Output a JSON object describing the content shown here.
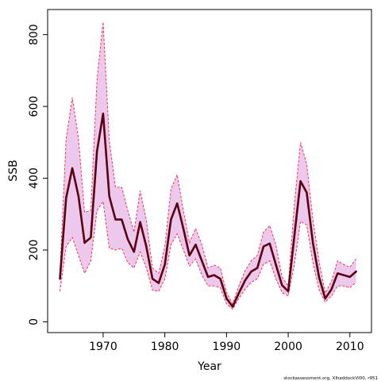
{
  "chart_data": {
    "type": "line",
    "title": "",
    "xlabel": "Year",
    "ylabel": "SSB",
    "xlim": [
      1961,
      2013.5
    ],
    "ylim": [
      -30,
      870
    ],
    "x_ticks": [
      1970,
      1980,
      1990,
      2000,
      2010
    ],
    "y_ticks": [
      0,
      200,
      400,
      600,
      800
    ],
    "grid": false,
    "legend": "none",
    "colors": {
      "estimate_line": "#5a0010",
      "band_fill": "#ecc8ec",
      "band_edge": "#ff1f3f",
      "axis": "#000000"
    },
    "x": [
      1963,
      1964,
      1965,
      1966,
      1967,
      1968,
      1969,
      1970,
      1971,
      1972,
      1973,
      1974,
      1975,
      1976,
      1977,
      1978,
      1979,
      1980,
      1981,
      1982,
      1983,
      1984,
      1985,
      1986,
      1987,
      1988,
      1989,
      1990,
      1991,
      1992,
      1993,
      1994,
      1995,
      1996,
      1997,
      1998,
      1999,
      2000,
      2001,
      2002,
      2003,
      2004,
      2005,
      2006,
      2007,
      2008,
      2009,
      2010,
      2011
    ],
    "series": [
      {
        "role": "estimate",
        "values": [
          120,
          345,
          428,
          350,
          220,
          235,
          475,
          580,
          350,
          285,
          285,
          230,
          195,
          278,
          210,
          120,
          108,
          160,
          285,
          330,
          260,
          185,
          215,
          170,
          125,
          130,
          120,
          65,
          42,
          80,
          115,
          140,
          150,
          210,
          218,
          160,
          102,
          85,
          240,
          392,
          360,
          220,
          125,
          65,
          90,
          135,
          130,
          125,
          140
        ]
      },
      {
        "role": "lower",
        "values": [
          85,
          210,
          235,
          185,
          135,
          170,
          310,
          335,
          205,
          200,
          205,
          165,
          150,
          195,
          150,
          88,
          85,
          120,
          215,
          245,
          200,
          155,
          175,
          130,
          100,
          100,
          95,
          50,
          35,
          65,
          90,
          110,
          120,
          160,
          170,
          120,
          82,
          72,
          160,
          280,
          270,
          165,
          90,
          55,
          72,
          100,
          100,
          95,
          110
        ]
      },
      {
        "role": "upper",
        "values": [
          135,
          510,
          625,
          510,
          305,
          310,
          675,
          835,
          505,
          375,
          375,
          310,
          250,
          365,
          285,
          150,
          135,
          210,
          370,
          410,
          310,
          220,
          260,
          215,
          150,
          158,
          150,
          82,
          50,
          100,
          142,
          170,
          185,
          250,
          268,
          215,
          125,
          100,
          330,
          500,
          440,
          285,
          170,
          80,
          112,
          170,
          160,
          152,
          175
        ]
      }
    ],
    "credit": "stockassessment.org, XIhaddockVI00, r951"
  }
}
